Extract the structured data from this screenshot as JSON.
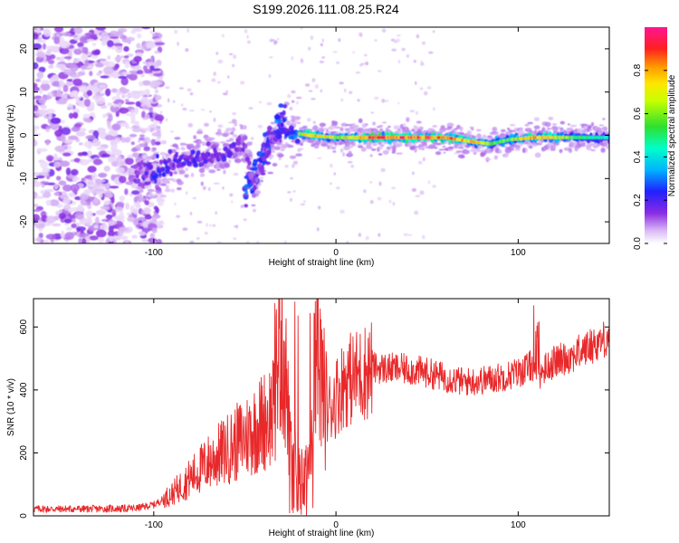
{
  "title": "S199.2026.111.08.25.R24",
  "colors": {
    "snr_line": "#e8282a",
    "track_low": "#8a2be2",
    "background": "#ffffff",
    "axes": "#000000"
  },
  "chart_data": [
    {
      "type": "heatmap",
      "name": "spectrogram",
      "xlabel": "Height of straight line (km)",
      "ylabel": "Frequency (Hz)",
      "xlim": [
        -166,
        150
      ],
      "ylim": [
        -25,
        25
      ],
      "xticks": [
        -100,
        0,
        100
      ],
      "xtick_labels": [
        "-100",
        "0",
        "100"
      ],
      "yticks": [
        -20,
        -10,
        0,
        10,
        20
      ],
      "ytick_labels": [
        "-20",
        "-10",
        "0",
        "10",
        "20"
      ],
      "colorbar": {
        "label": "Normalized spectral amplitude",
        "range": [
          0,
          1
        ],
        "ticks": [
          0.0,
          0.2,
          0.4,
          0.6,
          0.8
        ],
        "tick_labels": [
          "0.0",
          "0.2",
          "0.4",
          "0.6",
          "0.8"
        ],
        "colormap": "rainbow (white-purple-blue-cyan-green-yellow-red-magenta)"
      },
      "track": [
        {
          "x": -110,
          "f": -7.5,
          "amp": 0.3
        },
        {
          "x": -100,
          "f": -8.5,
          "amp": 0.45
        },
        {
          "x": -90,
          "f": -6.5,
          "amp": 0.4
        },
        {
          "x": -80,
          "f": -5.5,
          "amp": 0.4
        },
        {
          "x": -70,
          "f": -4.5,
          "amp": 0.35
        },
        {
          "x": -60,
          "f": -3.5,
          "amp": 0.35
        },
        {
          "x": -50,
          "f": -1.5,
          "amp": 0.3
        },
        {
          "x": -45,
          "f": -12.0,
          "amp": 0.25
        },
        {
          "x": -40,
          "f": -6.0,
          "amp": 0.3
        },
        {
          "x": -35,
          "f": -1.0,
          "amp": 0.3
        },
        {
          "x": -28,
          "f": 1.0,
          "amp": 0.45
        },
        {
          "x": -15,
          "f": 0.0,
          "amp": 0.85
        },
        {
          "x": 0,
          "f": -0.5,
          "amp": 0.7
        },
        {
          "x": 20,
          "f": -0.5,
          "amp": 0.95
        },
        {
          "x": 40,
          "f": -0.5,
          "amp": 0.95
        },
        {
          "x": 60,
          "f": -0.5,
          "amp": 0.9
        },
        {
          "x": 75,
          "f": -1.5,
          "amp": 0.85
        },
        {
          "x": 85,
          "f": -2.0,
          "amp": 0.6
        },
        {
          "x": 95,
          "f": -1.0,
          "amp": 0.6
        },
        {
          "x": 110,
          "f": -0.5,
          "amp": 0.9
        },
        {
          "x": 130,
          "f": -0.5,
          "amp": 0.6
        },
        {
          "x": 150,
          "f": -0.5,
          "amp": 0.45
        }
      ]
    },
    {
      "type": "line",
      "name": "snr",
      "xlabel": "Height of straight line (km)",
      "ylabel": "SNR (10 * v/v)",
      "xlim": [
        -166,
        150
      ],
      "ylim": [
        0,
        690
      ],
      "xticks": [
        -100,
        0,
        100
      ],
      "xtick_labels": [
        "-100",
        "0",
        "100"
      ],
      "yticks": [
        0,
        200,
        400,
        600
      ],
      "ytick_labels": [
        "0",
        "200",
        "400",
        "600"
      ],
      "series": [
        {
          "name": "SNR",
          "x": [
            -166,
            -150,
            -130,
            -110,
            -100,
            -90,
            -80,
            -70,
            -60,
            -50,
            -40,
            -35,
            -32,
            -30,
            -28,
            -25,
            -20,
            -15,
            -12,
            -10,
            -8,
            -5,
            0,
            5,
            10,
            15,
            20,
            30,
            40,
            50,
            60,
            70,
            80,
            90,
            100,
            105,
            108,
            110,
            112,
            115,
            120,
            130,
            140,
            150
          ],
          "values": [
            22,
            22,
            22,
            24,
            35,
            70,
            120,
            170,
            210,
            250,
            300,
            330,
            500,
            600,
            480,
            200,
            180,
            150,
            300,
            560,
            430,
            330,
            380,
            430,
            440,
            455,
            470,
            468,
            465,
            455,
            440,
            425,
            430,
            440,
            455,
            470,
            480,
            430,
            450,
            470,
            490,
            510,
            540,
            570
          ]
        }
      ]
    }
  ]
}
